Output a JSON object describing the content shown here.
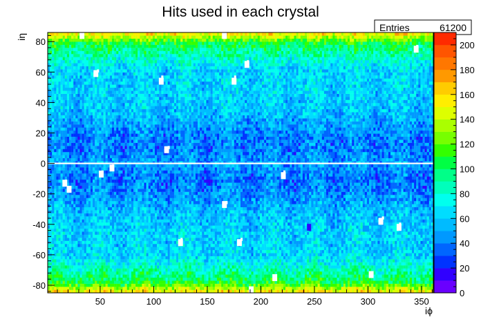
{
  "chart_data": {
    "type": "heatmap",
    "title": "Hits used in each crystal",
    "xlabel": "iϕ",
    "ylabel": "iη",
    "xlim": [
      1,
      361
    ],
    "ylim": [
      -85,
      86
    ],
    "x_ticks": [
      50,
      100,
      150,
      200,
      250,
      300,
      350
    ],
    "y_ticks": [
      -80,
      -60,
      -40,
      -20,
      0,
      20,
      40,
      60,
      80
    ],
    "z_range": [
      0,
      210
    ],
    "z_ticks": [
      0,
      20,
      40,
      60,
      80,
      100,
      120,
      140,
      160,
      180,
      200
    ],
    "grid": false,
    "stats": {
      "label": "Entries",
      "value": "61200"
    },
    "empty_row_ieta": 0,
    "empty_cells": [
      [
        33,
        84
      ],
      [
        166,
        84
      ],
      [
        345,
        75
      ],
      [
        187,
        65
      ],
      [
        46,
        59
      ],
      [
        175,
        54
      ],
      [
        107,
        54
      ],
      [
        112,
        9
      ],
      [
        61,
        -3
      ],
      [
        51,
        -7
      ],
      [
        221,
        -8
      ],
      [
        17,
        -13
      ],
      [
        21,
        -17
      ],
      [
        166,
        -27
      ],
      [
        312,
        -38
      ],
      [
        329,
        -42
      ],
      [
        125,
        -52
      ],
      [
        180,
        -52
      ],
      [
        303,
        -73
      ],
      [
        213,
        -75
      ],
      [
        191,
        -83
      ]
    ],
    "hot_cells": [
      [
        245,
        -42
      ]
    ],
    "palette": [
      "#6a00ff",
      "#3000ff",
      "#0033ff",
      "#0066ff",
      "#0099ff",
      "#00bbff",
      "#00ddff",
      "#00ffee",
      "#00ffbb",
      "#00ff88",
      "#00ff44",
      "#33ff00",
      "#77ff00",
      "#aaff00",
      "#ddff00",
      "#ffee00",
      "#ffcc00",
      "#ff9900",
      "#ff7700",
      "#ff5500",
      "#ff2a00"
    ]
  }
}
